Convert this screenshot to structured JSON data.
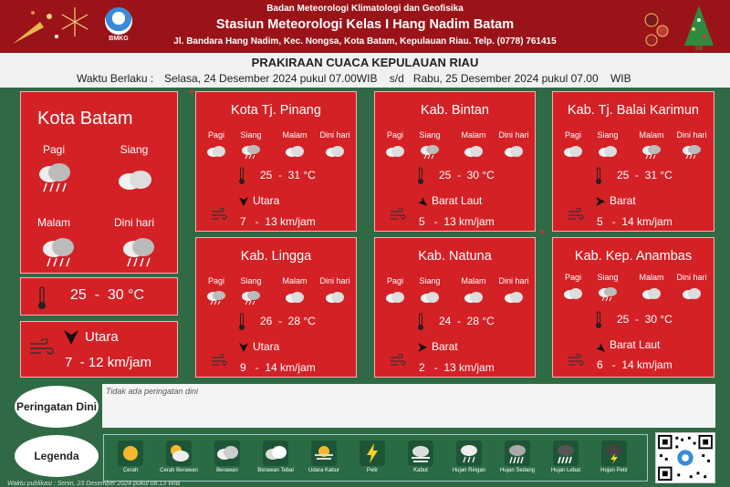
{
  "header": {
    "agency": "Badan Meteorologi Klimatologi dan Geofisika",
    "station": "Stasiun Meteorologi Kelas I Hang Nadim Batam",
    "address": "Jl. Bandara Hang Nadim, Kec. Nongsa, Kota Batam, Kepulauan Riau. Telp. (0778) 761415",
    "logo_text": "BMKG"
  },
  "titlebar": {
    "title": "PRAKIRAAN CUACA KEPULAUAN RIAU",
    "valid_label": "Waktu Berlaku :",
    "valid_range": "Selasa, 24 Desember 2024 pukul 07.00WIB    s/d   Rabu, 25 Desember 2024 pukul 07.00    WIB"
  },
  "periods": [
    "Pagi",
    "Siang",
    "Malam",
    "Dini hari"
  ],
  "main_card": {
    "name": "Kota Batam",
    "icons": [
      "heavy-rain-cloud-icon",
      "cloud-icon",
      "heavy-rain-cloud-icon",
      "heavy-rain-cloud-icon"
    ],
    "temp": "25  -  30 °C",
    "wind_dir": "Utara",
    "wind_speed": "7  - 12 km/jam"
  },
  "cards": [
    {
      "name": "Kota Tj. Pinang",
      "icons": [
        "cloud-icon",
        "rain-cloud-icon",
        "cloud-icon",
        "cloud-icon"
      ],
      "temp": "25  -  31 °C",
      "wind_dir": "Utara",
      "wind_speed": "7   -  13 km/jam"
    },
    {
      "name": "Kab. Bintan",
      "icons": [
        "cloud-icon",
        "rain-cloud-icon",
        "cloud-icon",
        "cloud-icon"
      ],
      "temp": "25  -  30 °C",
      "wind_dir": "Barat Laut",
      "wind_speed": "5   -  13 km/jam"
    },
    {
      "name": "Kab. Tj. Balai Karimun",
      "icons": [
        "cloud-icon",
        "cloud-icon",
        "rain-cloud-icon",
        "rain-cloud-icon"
      ],
      "temp": "25  -  31 °C",
      "wind_dir": "Barat",
      "wind_speed": "5   -  14 km/jam"
    },
    {
      "name": "Kab. Lingga",
      "icons": [
        "rain-cloud-icon",
        "rain-cloud-icon",
        "cloud-icon",
        "cloud-icon"
      ],
      "temp": "26  -  28 °C",
      "wind_dir": "Utara",
      "wind_speed": "9   -  14 km/jam"
    },
    {
      "name": "Kab. Natuna",
      "icons": [
        "cloud-icon",
        "cloud-icon",
        "cloud-icon",
        "cloud-icon"
      ],
      "temp": "24  -  28 °C",
      "wind_dir": "Barat",
      "wind_speed": "2   -  13 km/jam"
    },
    {
      "name": "Kab. Kep. Anambas",
      "icons": [
        "cloud-icon",
        "rain-cloud-icon",
        "cloud-icon",
        "cloud-icon"
      ],
      "temp": "25  -  30 °C",
      "wind_dir": "Barat Laut",
      "wind_speed": "6   -  14 km/jam"
    }
  ],
  "warning": {
    "label": "Peringatan Dini",
    "text": "Tidak ada peringatan dini"
  },
  "legend": {
    "label": "Legenda",
    "items": [
      {
        "text": "Cerah",
        "icon": "sun-icon"
      },
      {
        "text": "Cerah Berawan",
        "icon": "sun-cloud-icon"
      },
      {
        "text": "Berawan",
        "icon": "cloud-icon"
      },
      {
        "text": "Berawan Tebal",
        "icon": "thick-cloud-icon"
      },
      {
        "text": "Udara Kabur",
        "icon": "haze-icon"
      },
      {
        "text": "Petir",
        "icon": "lightning-icon"
      },
      {
        "text": "Kabut",
        "icon": "fog-icon"
      },
      {
        "text": "Hujan Ringan",
        "icon": "light-rain-icon"
      },
      {
        "text": "Hujan Sedang",
        "icon": "moderate-rain-icon"
      },
      {
        "text": "Hujan Lebat",
        "icon": "heavy-rain-icon"
      },
      {
        "text": "Hujan Petir",
        "icon": "thunderstorm-icon"
      }
    ]
  },
  "footer": "Waktu publikasi : Senin, 23 Desember 2024 pukul 08.13  WIB",
  "colors": {
    "header_bg": "#9a1318",
    "card_bg": "#d42126",
    "page_bg": "#2f6a45"
  }
}
